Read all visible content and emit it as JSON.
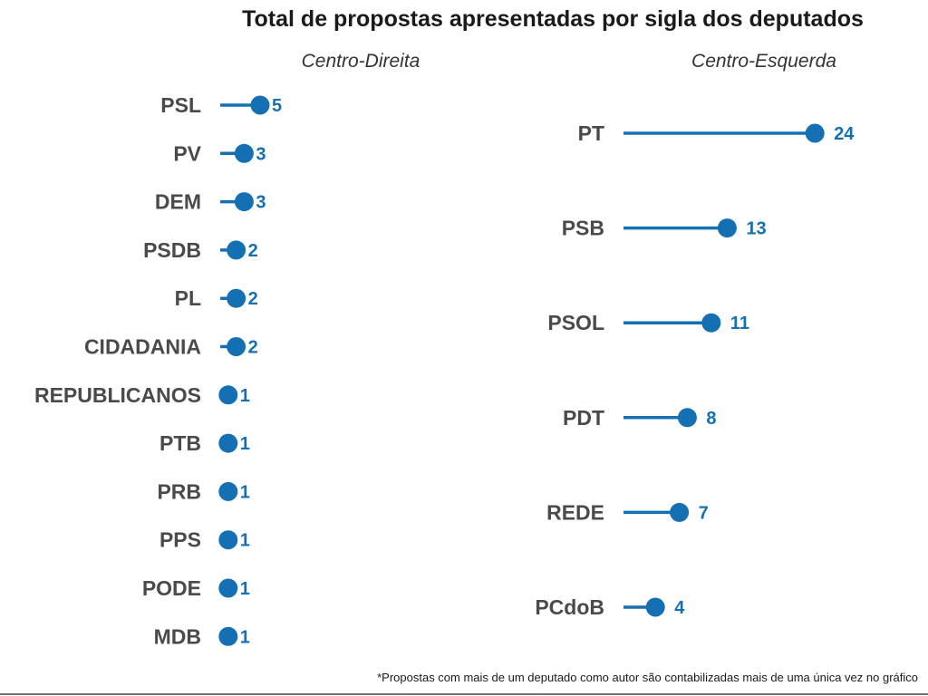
{
  "colors": {
    "accent": "#1570b3",
    "label": "#4a4a4a",
    "title": "#1a1a1a",
    "rule": "#444444"
  },
  "title": "Total de propostas apresentadas por sigla dos deputados",
  "footnote": "*Propostas com mais de um deputado como autor são contabilizadas mais de uma única vez no gráfico",
  "chart_data": [
    {
      "type": "lollipop",
      "orientation": "horizontal",
      "title": "Centro-Direita",
      "categories": [
        "PSL",
        "PV",
        "DEM",
        "PSDB",
        "PL",
        "CIDADANIA",
        "REPUBLICANOS",
        "PTB",
        "PRB",
        "PPS",
        "PODE",
        "MDB"
      ],
      "values": [
        5,
        3,
        3,
        2,
        2,
        2,
        1,
        1,
        1,
        1,
        1,
        1
      ],
      "xlim": [
        0,
        24
      ]
    },
    {
      "type": "lollipop",
      "orientation": "horizontal",
      "title": "Centro-Esquerda",
      "categories": [
        "PT",
        "PSB",
        "PSOL",
        "PDT",
        "REDE",
        "PCdoB"
      ],
      "values": [
        24,
        13,
        11,
        8,
        7,
        4
      ],
      "xlim": [
        0,
        24
      ]
    }
  ]
}
